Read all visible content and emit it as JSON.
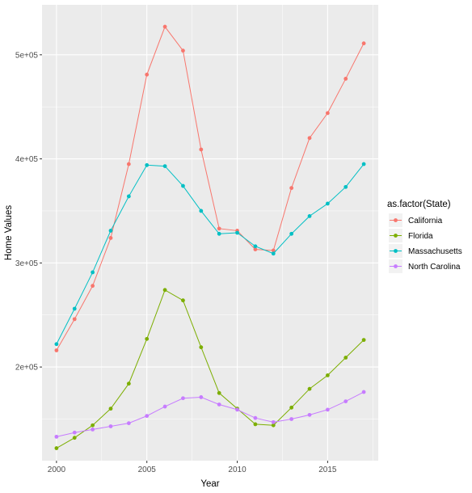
{
  "chart_data": {
    "type": "line",
    "xlabel": "Year",
    "ylabel": "Home Values",
    "xlim": [
      1999.2,
      2017.8
    ],
    "ylim": [
      110000,
      548000
    ],
    "x_ticks": [
      2000,
      2005,
      2010,
      2015
    ],
    "x_tick_labels": [
      "2000",
      "2005",
      "2010",
      "2015"
    ],
    "y_ticks": [
      200000,
      300000,
      400000,
      500000
    ],
    "y_tick_labels": [
      "2e+05",
      "3e+05",
      "4e+05",
      "5e+05"
    ],
    "grid": true,
    "legend": {
      "title": "as.factor(State)",
      "position": "right"
    },
    "x": [
      2000,
      2001,
      2002,
      2003,
      2004,
      2005,
      2006,
      2007,
      2008,
      2009,
      2010,
      2011,
      2012,
      2013,
      2014,
      2015,
      2016,
      2017
    ],
    "series": [
      {
        "name": "California",
        "color": "#F8766D",
        "values": [
          216000,
          246000,
          278000,
          324000,
          395000,
          481000,
          527000,
          504000,
          409000,
          333000,
          331000,
          313000,
          312000,
          372000,
          420000,
          444000,
          477000,
          511000
        ]
      },
      {
        "name": "Florida",
        "color": "#7CAE00",
        "values": [
          122000,
          132000,
          144000,
          160000,
          184000,
          227000,
          274000,
          264000,
          219000,
          175000,
          160000,
          145000,
          144000,
          161000,
          179000,
          192000,
          209000,
          226000
        ]
      },
      {
        "name": "Massachusetts",
        "color": "#00BFC4",
        "values": [
          222000,
          256000,
          291000,
          331000,
          364000,
          394000,
          393000,
          374000,
          350000,
          328000,
          329000,
          316000,
          309000,
          328000,
          345000,
          357000,
          373000,
          395000
        ]
      },
      {
        "name": "North Carolina",
        "color": "#C77CFF",
        "values": [
          133000,
          137000,
          140000,
          143000,
          146000,
          153000,
          162000,
          170000,
          171000,
          164000,
          159000,
          151000,
          147000,
          150000,
          154000,
          159000,
          167000,
          176000
        ]
      }
    ]
  }
}
